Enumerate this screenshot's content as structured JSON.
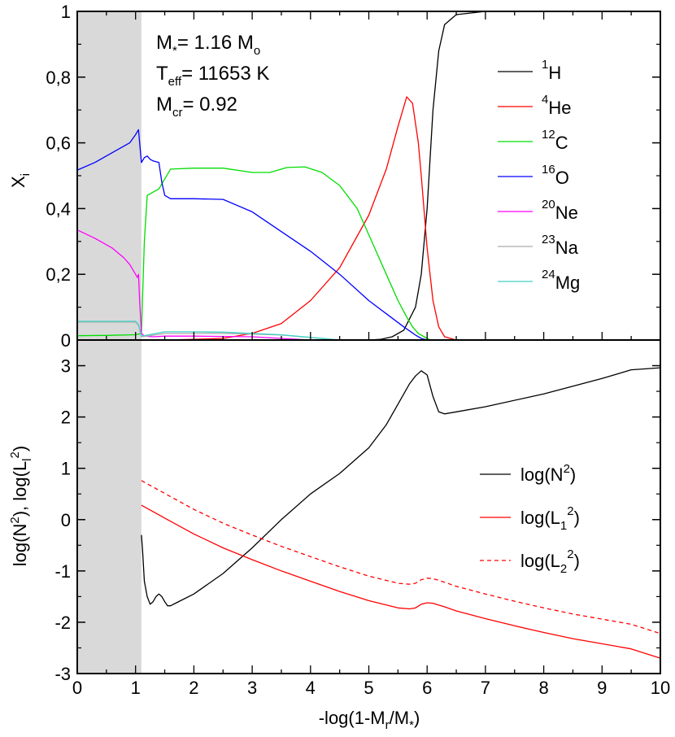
{
  "chart_data": [
    {
      "type": "line",
      "panel": "top",
      "ylabel": "X",
      "ylabel_sub": "i",
      "xlim": [
        0,
        10
      ],
      "ylim": [
        0,
        1
      ],
      "yticks": [
        0,
        0.2,
        0.4,
        0.6,
        0.8,
        1
      ],
      "ytick_labels": [
        "0",
        "0,2",
        "0,4",
        "0,6",
        "0,8",
        "1"
      ],
      "shaded_region": [
        0,
        1.1
      ],
      "annotations": [
        {
          "prefix": "M",
          "sub": "*",
          "value": "= 1.16 M",
          "value_sub": "o"
        },
        {
          "prefix": "T",
          "sub": "eff",
          "value": "= 11653 K",
          "value_sub": ""
        },
        {
          "prefix": "M",
          "sub": "cr",
          "value": "= 0.92",
          "value_sub": ""
        }
      ],
      "series": [
        {
          "name": "1H",
          "label_sup": "1",
          "label": "H",
          "color": "#000000",
          "dash": "",
          "x": [
            0,
            5.0,
            5.2,
            5.4,
            5.6,
            5.8,
            5.9,
            6.0,
            6.05,
            6.1,
            6.2,
            6.3,
            6.5,
            7,
            10
          ],
          "y": [
            0,
            0,
            0.002,
            0.01,
            0.03,
            0.1,
            0.2,
            0.4,
            0.55,
            0.7,
            0.88,
            0.96,
            0.99,
            1,
            1
          ]
        },
        {
          "name": "4He",
          "label_sup": "4",
          "label": "He",
          "color": "#ff0000",
          "dash": "",
          "x": [
            0,
            1.1,
            1.5,
            2.0,
            2.5,
            3.0,
            3.5,
            4.0,
            4.5,
            5.0,
            5.3,
            5.5,
            5.65,
            5.75,
            5.85,
            5.9,
            6.0,
            6.1,
            6.2,
            6.3,
            6.5,
            10
          ],
          "y": [
            0,
            0,
            0,
            0.002,
            0.005,
            0.02,
            0.05,
            0.12,
            0.22,
            0.38,
            0.52,
            0.65,
            0.74,
            0.72,
            0.6,
            0.5,
            0.28,
            0.12,
            0.04,
            0.01,
            0,
            0
          ]
        },
        {
          "name": "12C",
          "label_sup": "12",
          "label": "C",
          "color": "#00dd00",
          "dash": "",
          "x": [
            0,
            0.5,
            1.0,
            1.1,
            1.15,
            1.2,
            1.3,
            1.4,
            1.6,
            2.0,
            2.5,
            3.0,
            3.3,
            3.6,
            3.9,
            4.2,
            4.5,
            4.8,
            5.1,
            5.3,
            5.5,
            5.65,
            5.75,
            5.85,
            5.95,
            6.05,
            10
          ],
          "y": [
            0.013,
            0.014,
            0.016,
            0.02,
            0.3,
            0.44,
            0.45,
            0.46,
            0.52,
            0.523,
            0.523,
            0.51,
            0.51,
            0.525,
            0.527,
            0.51,
            0.47,
            0.4,
            0.28,
            0.2,
            0.12,
            0.07,
            0.04,
            0.02,
            0.01,
            0,
            0
          ]
        },
        {
          "name": "16O",
          "label_sup": "16",
          "label": "O",
          "color": "#0000ff",
          "dash": "",
          "x": [
            0,
            0.3,
            0.6,
            0.9,
            1.0,
            1.05,
            1.07,
            1.1,
            1.15,
            1.2,
            1.25,
            1.3,
            1.4,
            1.45,
            1.5,
            1.6,
            2.0,
            2.5,
            3.0,
            3.5,
            4.0,
            4.5,
            5.0,
            5.3,
            5.6,
            5.8,
            5.9,
            6.0,
            10
          ],
          "y": [
            0.517,
            0.54,
            0.57,
            0.6,
            0.625,
            0.64,
            0.6,
            0.54,
            0.555,
            0.56,
            0.55,
            0.545,
            0.54,
            0.48,
            0.44,
            0.43,
            0.43,
            0.428,
            0.39,
            0.33,
            0.27,
            0.2,
            0.12,
            0.08,
            0.04,
            0.015,
            0.005,
            0,
            0
          ]
        },
        {
          "name": "20Ne",
          "label_sup": "20",
          "label": "Ne",
          "color": "#ff00ff",
          "dash": "",
          "x": [
            0,
            0.3,
            0.6,
            0.8,
            0.9,
            1.0,
            1.03,
            1.05,
            1.07,
            1.1,
            1.15,
            1.3,
            1.5,
            2.0,
            3.0,
            3.5,
            4.0,
            10
          ],
          "y": [
            0.335,
            0.31,
            0.28,
            0.25,
            0.23,
            0.2,
            0.19,
            0.2,
            0.12,
            0.02,
            0.012,
            0.01,
            0.012,
            0.012,
            0.01,
            0.005,
            0,
            0
          ]
        },
        {
          "name": "23Na",
          "label_sup": "23",
          "label": "Na",
          "color": "#aaaaaa",
          "dash": "",
          "x": [
            0,
            0.5,
            1.0,
            1.05,
            1.1,
            1.2,
            1.5,
            2.0,
            2.5,
            3.0,
            3.5,
            4.0,
            4.5,
            10
          ],
          "y": [
            0.055,
            0.055,
            0.055,
            0.045,
            0.01,
            0.012,
            0.02,
            0.02,
            0.02,
            0.018,
            0.015,
            0.008,
            0,
            0
          ]
        },
        {
          "name": "24Mg",
          "label_sup": "24",
          "label": "Mg",
          "color": "#40d0c8",
          "dash": "",
          "x": [
            0,
            0.5,
            1.0,
            1.05,
            1.1,
            1.2,
            1.5,
            2.0,
            2.5,
            3.0,
            3.5,
            4.0,
            4.5,
            10
          ],
          "y": [
            0.057,
            0.057,
            0.057,
            0.047,
            0.012,
            0.015,
            0.025,
            0.025,
            0.024,
            0.02,
            0.016,
            0.008,
            0,
            0
          ]
        }
      ]
    },
    {
      "type": "line",
      "panel": "bottom",
      "xlabel": "-log(1-M",
      "xlabel_sub1": "r",
      "xlabel_mid": "/M",
      "xlabel_sub2": "*",
      "xlabel_end": ")",
      "ylabel": "log(N²), log(L_l²)",
      "xlim": [
        0,
        10
      ],
      "ylim": [
        -3,
        3.5
      ],
      "xticks": [
        0,
        1,
        2,
        3,
        4,
        5,
        6,
        7,
        8,
        9,
        10
      ],
      "xtick_labels": [
        "0",
        "1",
        "2",
        "3",
        "4",
        "5",
        "6",
        "7",
        "8",
        "9",
        "10"
      ],
      "yticks": [
        -3,
        -2,
        -1,
        0,
        1,
        2,
        3
      ],
      "ytick_labels": [
        "-3",
        "-2",
        "-1",
        "0",
        "1",
        "2",
        "3"
      ],
      "shaded_region": [
        0,
        1.1
      ],
      "series": [
        {
          "name": "log(N2)",
          "label_main": "log(N",
          "label_sup": "2",
          "label_sub": "",
          "label_end": ")",
          "color": "#000000",
          "dash": "",
          "x": [
            1.1,
            1.12,
            1.15,
            1.2,
            1.25,
            1.3,
            1.35,
            1.4,
            1.45,
            1.5,
            1.55,
            1.6,
            1.7,
            2.0,
            2.5,
            3.0,
            3.5,
            4.0,
            4.5,
            5.0,
            5.3,
            5.5,
            5.7,
            5.8,
            5.9,
            6.0,
            6.1,
            6.2,
            6.3,
            6.5,
            7.0,
            8.0,
            9.0,
            9.5,
            10.0
          ],
          "y": [
            -0.3,
            -0.6,
            -1.2,
            -1.5,
            -1.65,
            -1.6,
            -1.5,
            -1.45,
            -1.5,
            -1.6,
            -1.68,
            -1.68,
            -1.62,
            -1.45,
            -1.05,
            -0.55,
            0.0,
            0.5,
            0.9,
            1.4,
            1.85,
            2.25,
            2.65,
            2.8,
            2.9,
            2.82,
            2.4,
            2.1,
            2.06,
            2.1,
            2.2,
            2.45,
            2.75,
            2.92,
            2.96
          ]
        },
        {
          "name": "log(L1^2)",
          "label_main": "log(L",
          "label_sup": "2",
          "label_sub": "1",
          "label_end": ")",
          "color": "#ff0000",
          "dash": "",
          "x": [
            1.1,
            1.5,
            2.0,
            2.5,
            3.0,
            3.5,
            4.0,
            4.5,
            5.0,
            5.5,
            5.7,
            5.8,
            5.9,
            6.0,
            6.1,
            6.3,
            6.5,
            7.0,
            7.5,
            8.0,
            8.5,
            9.0,
            9.5,
            10.0
          ],
          "y": [
            0.28,
            0.03,
            -0.28,
            -0.55,
            -0.78,
            -1.0,
            -1.2,
            -1.4,
            -1.58,
            -1.72,
            -1.74,
            -1.72,
            -1.65,
            -1.62,
            -1.63,
            -1.7,
            -1.78,
            -1.93,
            -2.07,
            -2.2,
            -2.32,
            -2.42,
            -2.52,
            -2.7
          ]
        },
        {
          "name": "log(L2^2)",
          "label_main": "log(L",
          "label_sup": "2",
          "label_sub": "2",
          "label_end": ")",
          "color": "#ff0000",
          "dash": "5,4",
          "x": [
            1.1,
            1.5,
            2.0,
            2.5,
            3.0,
            3.5,
            4.0,
            4.5,
            5.0,
            5.5,
            5.7,
            5.8,
            5.9,
            6.0,
            6.1,
            6.3,
            6.5,
            7.0,
            7.5,
            8.0,
            8.5,
            9.0,
            9.5,
            10.0
          ],
          "y": [
            0.76,
            0.51,
            0.2,
            -0.07,
            -0.3,
            -0.52,
            -0.72,
            -0.92,
            -1.1,
            -1.24,
            -1.26,
            -1.24,
            -1.17,
            -1.14,
            -1.15,
            -1.22,
            -1.3,
            -1.45,
            -1.59,
            -1.72,
            -1.84,
            -1.94,
            -2.04,
            -2.22
          ]
        }
      ]
    }
  ]
}
